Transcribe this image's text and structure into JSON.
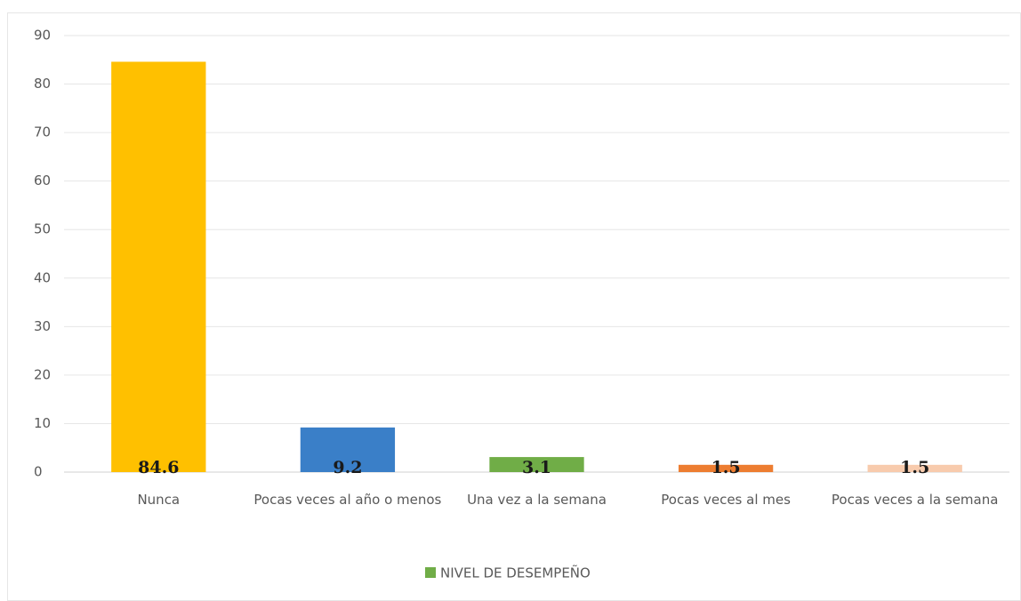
{
  "chart_data": {
    "type": "bar",
    "categories": [
      "Nunca",
      "Pocas veces al año o menos",
      "Una vez a la semana",
      "Pocas veces al mes",
      "Pocas veces a la semana"
    ],
    "series": [
      {
        "name": "NIVEL DE DESEMPEÑO",
        "color": "#70ad47",
        "colors": [
          "#ffc000",
          "#3a7fc8",
          "#70ad47",
          "#ed7d31",
          "#f8cbad"
        ],
        "values": [
          84.6,
          9.2,
          3.1,
          1.5,
          1.5
        ]
      }
    ],
    "ylim": [
      0,
      90
    ],
    "yticks": [
      0,
      10,
      20,
      30,
      40,
      50,
      60,
      70,
      80,
      90
    ],
    "grid": true,
    "legend": "bottom"
  }
}
